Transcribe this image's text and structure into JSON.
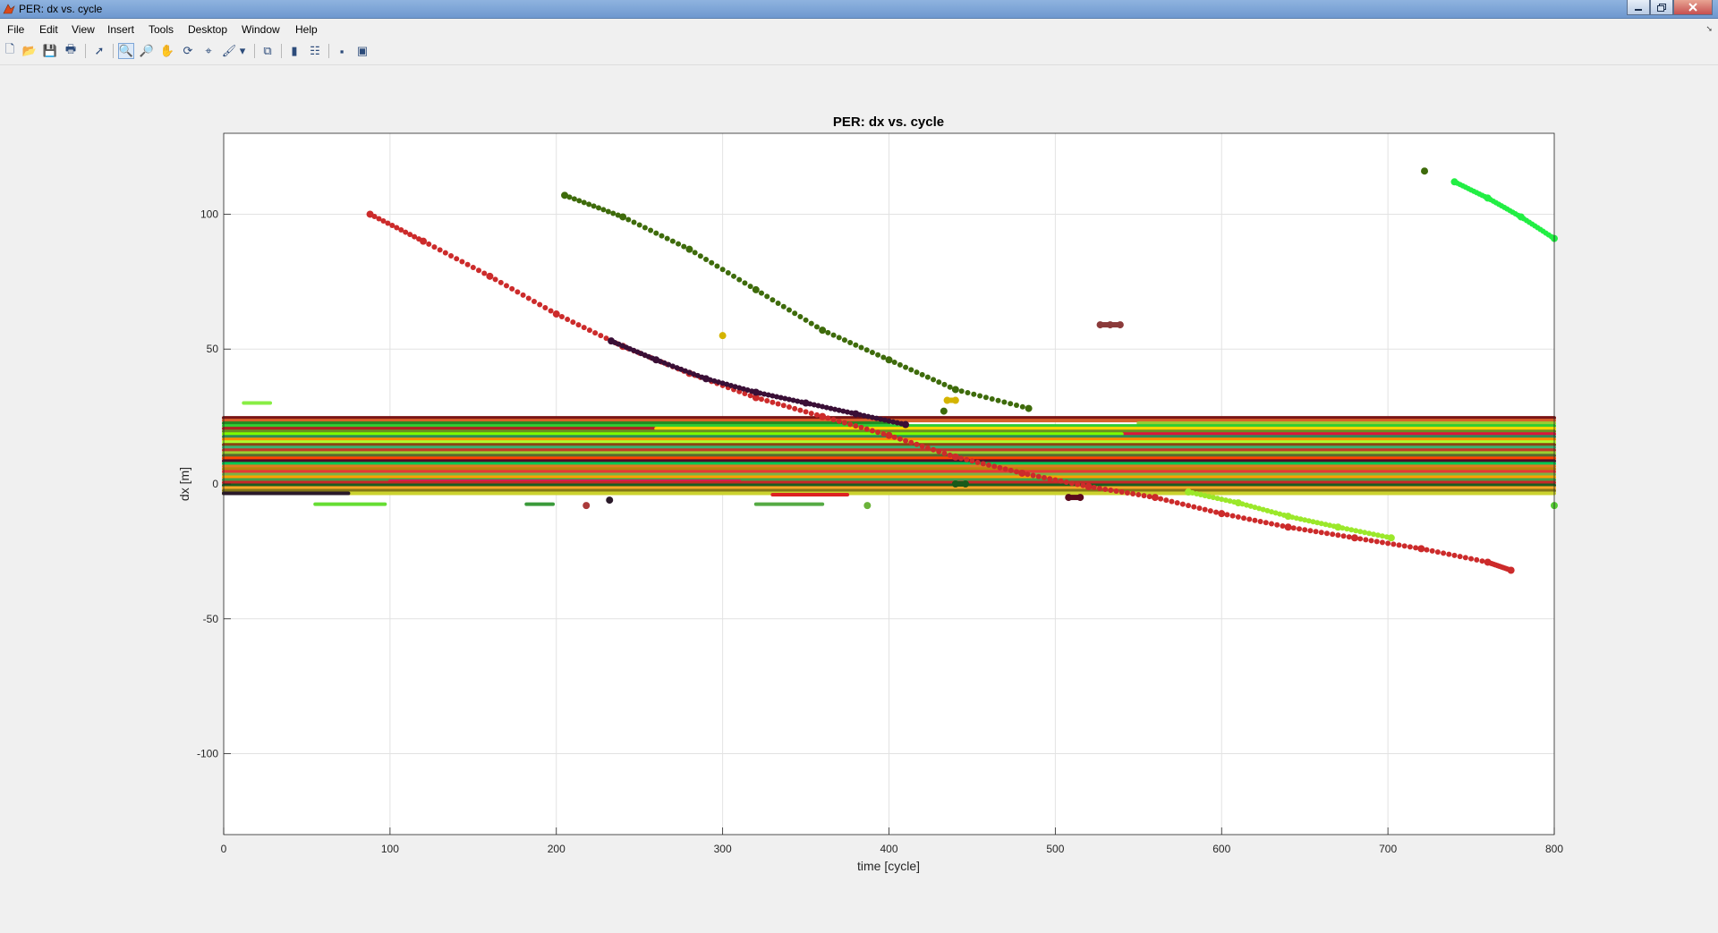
{
  "window": {
    "title": "PER: dx vs. cycle"
  },
  "menu": [
    "File",
    "Edit",
    "View",
    "Insert",
    "Tools",
    "Desktop",
    "Window",
    "Help"
  ],
  "toolbar": [
    {
      "name": "new-figure-icon",
      "glyph": "🗋"
    },
    {
      "name": "open-file-icon",
      "glyph": "📂"
    },
    {
      "name": "save-icon",
      "glyph": "💾"
    },
    {
      "name": "print-icon",
      "glyph": "🖶"
    },
    {
      "name": "edit-plot-arrow-icon",
      "glyph": "➚"
    },
    {
      "name": "zoom-in-icon",
      "glyph": "🔍"
    },
    {
      "name": "zoom-out-icon",
      "glyph": "🔎"
    },
    {
      "name": "pan-hand-icon",
      "glyph": "✋"
    },
    {
      "name": "rotate-3d-icon",
      "glyph": "⟳"
    },
    {
      "name": "data-cursor-icon",
      "glyph": "⌖"
    },
    {
      "name": "brush-icon",
      "glyph": "🖌"
    },
    {
      "name": "brush-dropdown-icon",
      "glyph": "▾"
    },
    {
      "name": "link-plot-icon",
      "glyph": "⧉"
    },
    {
      "name": "colorbar-icon",
      "glyph": "▮"
    },
    {
      "name": "legend-icon",
      "glyph": "☷"
    },
    {
      "name": "hide-plot-tools-icon",
      "glyph": "▪"
    },
    {
      "name": "show-plot-tools-icon",
      "glyph": "▣"
    }
  ],
  "chart_data": {
    "type": "scatter",
    "title": "PER: dx vs. cycle",
    "xlabel": "time [cycle]",
    "ylabel": "dx  [m]",
    "xlim": [
      0,
      800
    ],
    "ylim": [
      -130,
      130
    ],
    "xticks": [
      0,
      100,
      200,
      300,
      400,
      500,
      600,
      700,
      800
    ],
    "yticks": [
      -100,
      -50,
      0,
      50,
      100
    ],
    "grid": true,
    "series": [
      {
        "color": "#cc2b2b",
        "x": [
          88,
          120,
          160,
          200,
          240,
          280,
          320,
          360,
          400,
          440,
          480,
          520,
          560,
          600,
          640,
          680,
          720,
          760,
          774
        ],
        "y": [
          100,
          90,
          77,
          63,
          51,
          41,
          32,
          25,
          18,
          10,
          4,
          -1,
          -5,
          -11,
          -16,
          -20,
          -24,
          -29,
          -32
        ]
      },
      {
        "color": "#3e6b0b",
        "x": [
          205,
          240,
          280,
          320,
          360,
          400,
          440,
          484
        ],
        "y": [
          107,
          99,
          87,
          72,
          57,
          46,
          35,
          28
        ]
      },
      {
        "color": "#3a0f36",
        "x": [
          233,
          260,
          290,
          320,
          350,
          380,
          410
        ],
        "y": [
          53,
          46,
          39,
          34,
          30,
          26,
          22
        ]
      },
      {
        "color": "#22ee44",
        "x": [
          740,
          760,
          780,
          800
        ],
        "y": [
          112,
          106,
          99,
          91
        ]
      },
      {
        "color": "#9be82a",
        "x": [
          580,
          610,
          640,
          670,
          702
        ],
        "y": [
          -3,
          -7,
          -12,
          -16,
          -20
        ]
      },
      {
        "color": "#3e6b0b",
        "x": [
          722
        ],
        "y": [
          116
        ]
      },
      {
        "color": "#d4b400",
        "x": [
          300
        ],
        "y": [
          55
        ]
      },
      {
        "color": "#8b3a3a",
        "x": [
          527,
          533,
          539
        ],
        "y": [
          59,
          59,
          59
        ]
      },
      {
        "color": "#d4b400",
        "x": [
          435,
          440
        ],
        "y": [
          31,
          31
        ]
      },
      {
        "color": "#3e6b0b",
        "x": [
          433
        ],
        "y": [
          27
        ]
      },
      {
        "color": "#2a1a2a",
        "x": [
          232
        ],
        "y": [
          -6
        ]
      },
      {
        "color": "#5a0a1e",
        "x": [
          508,
          515
        ],
        "y": [
          -5,
          -5
        ]
      },
      {
        "color": "#1a5a1a",
        "x": [
          440,
          446
        ],
        "y": [
          0,
          0
        ]
      },
      {
        "color": "#6bb33a",
        "x": [
          387
        ],
        "y": [
          -8
        ]
      },
      {
        "color": "#aa3a3a",
        "x": [
          218
        ],
        "y": [
          -8
        ]
      },
      {
        "color": "#55cc33",
        "x": [
          800
        ],
        "y": [
          -8
        ]
      }
    ],
    "bands": [
      {
        "color": "#7a1414",
        "x0": 0,
        "x1": 800,
        "y": 24.5
      },
      {
        "color": "#d9622b",
        "x0": 0,
        "x1": 800,
        "y": 23.5
      },
      {
        "color": "#228b22",
        "x0": 0,
        "x1": 400,
        "y": 22.5
      },
      {
        "color": "#9acd32",
        "x0": 550,
        "x1": 800,
        "y": 22.5
      },
      {
        "color": "#32cd32",
        "x0": 0,
        "x1": 800,
        "y": 21.5
      },
      {
        "color": "#b22222",
        "x0": 0,
        "x1": 260,
        "y": 20.5
      },
      {
        "color": "#ffd700",
        "x0": 260,
        "x1": 800,
        "y": 20.5
      },
      {
        "color": "#6b8e23",
        "x0": 0,
        "x1": 800,
        "y": 19.5
      },
      {
        "color": "#dc143c",
        "x0": 540,
        "x1": 800,
        "y": 18.5
      },
      {
        "color": "#7cfc00",
        "x0": 0,
        "x1": 540,
        "y": 18.5
      },
      {
        "color": "#2e8b57",
        "x0": 0,
        "x1": 800,
        "y": 17.5
      },
      {
        "color": "#ff8c00",
        "x0": 0,
        "x1": 800,
        "y": 16.5
      },
      {
        "color": "#adff2f",
        "x0": 0,
        "x1": 800,
        "y": 15.5
      },
      {
        "color": "#8b4513",
        "x0": 0,
        "x1": 800,
        "y": 14.5
      },
      {
        "color": "#3cb371",
        "x0": 0,
        "x1": 800,
        "y": 13.5
      },
      {
        "color": "#c0392b",
        "x0": 0,
        "x1": 800,
        "y": 12.5
      },
      {
        "color": "#9acd32",
        "x0": 0,
        "x1": 800,
        "y": 11.5
      },
      {
        "color": "#556b2f",
        "x0": 0,
        "x1": 800,
        "y": 10.5
      },
      {
        "color": "#ff4500",
        "x0": 0,
        "x1": 800,
        "y": 9.5
      },
      {
        "color": "#4b0f2a",
        "x0": 0,
        "x1": 800,
        "y": 8.5
      },
      {
        "color": "#00c853",
        "x0": 0,
        "x1": 800,
        "y": 7.5
      },
      {
        "color": "#e07b22",
        "x0": 0,
        "x1": 800,
        "y": 6.5
      },
      {
        "color": "#b8860b",
        "x0": 0,
        "x1": 800,
        "y": 5.5
      },
      {
        "color": "#e53935",
        "x0": 0,
        "x1": 800,
        "y": 4.5
      },
      {
        "color": "#7cb342",
        "x0": 0,
        "x1": 800,
        "y": 3.5
      },
      {
        "color": "#ffa000",
        "x0": 0,
        "x1": 800,
        "y": 2.5
      },
      {
        "color": "#43a047",
        "x0": 0,
        "x1": 800,
        "y": 1.5
      },
      {
        "color": "#d81b60",
        "x0": 100,
        "x1": 310,
        "y": 1
      },
      {
        "color": "#c62828",
        "x0": 0,
        "x1": 800,
        "y": 0.5
      },
      {
        "color": "#1b5e20",
        "x0": 0,
        "x1": 800,
        "y": -0.5
      },
      {
        "color": "#f9a825",
        "x0": 0,
        "x1": 800,
        "y": -1.5
      },
      {
        "color": "#827717",
        "x0": 0,
        "x1": 800,
        "y": -2.5
      },
      {
        "color": "#2a0a2a",
        "x0": 0,
        "x1": 210,
        "y": -3.5
      },
      {
        "color": "#ccd32f",
        "x0": 0,
        "x1": 800,
        "y": -3.5
      },
      {
        "color": "#66dd33",
        "x0": 55,
        "x1": 97,
        "y": -7.5
      },
      {
        "color": "#3a9a3a",
        "x0": 182,
        "x1": 198,
        "y": -7.5
      },
      {
        "color": "#55aa44",
        "x0": 320,
        "x1": 360,
        "y": -7.5
      },
      {
        "color": "#2a1a2a",
        "x0": 0,
        "x1": 75,
        "y": -3.5
      },
      {
        "color": "#dd2222",
        "x0": 330,
        "x1": 375,
        "y": -4
      },
      {
        "color": "#88ee44",
        "x0": 12,
        "x1": 28,
        "y": 30
      }
    ]
  }
}
